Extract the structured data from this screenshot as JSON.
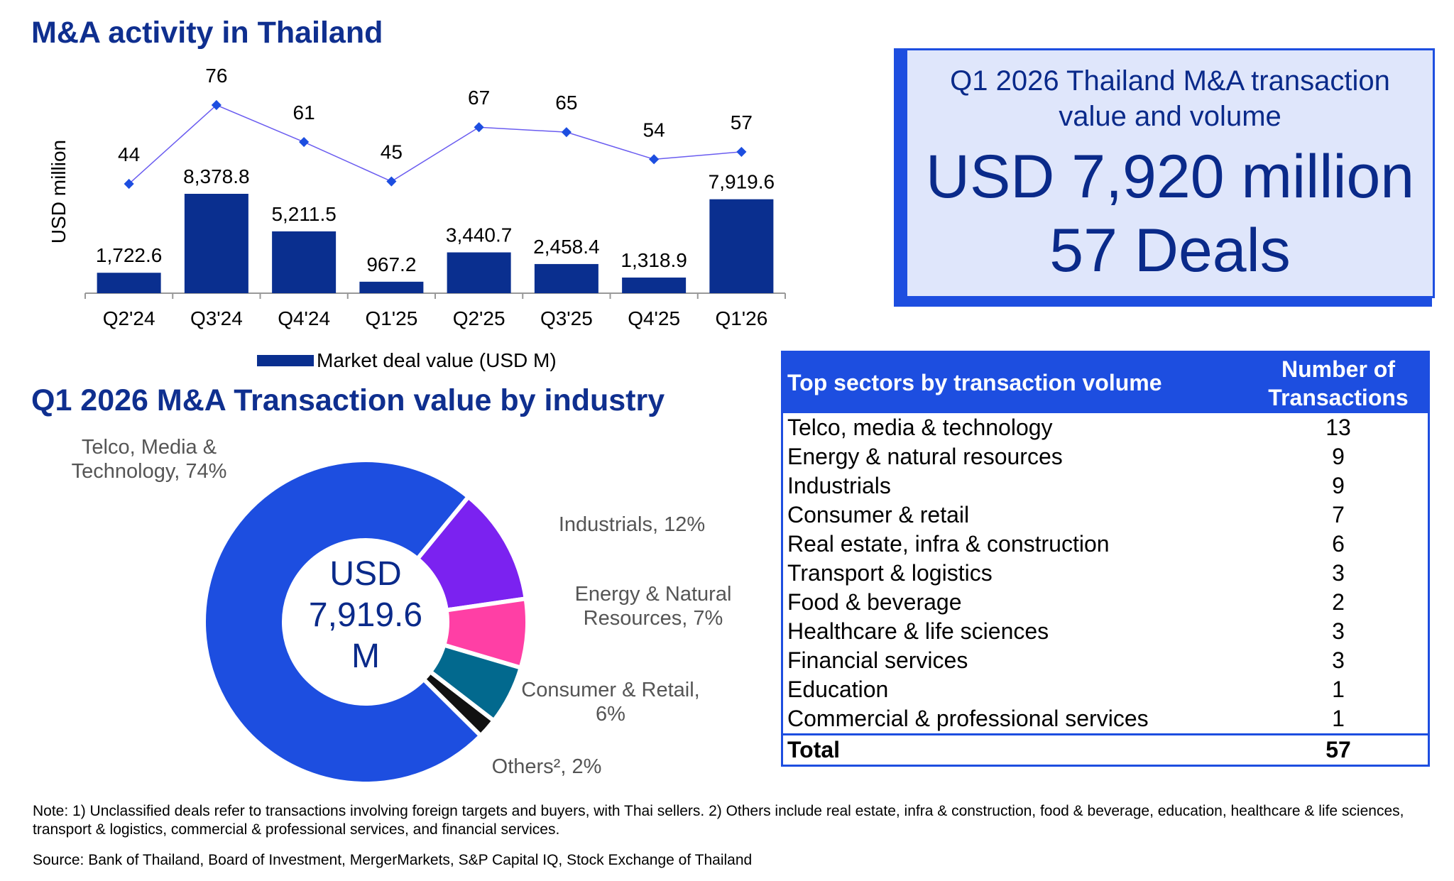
{
  "title": "M&A activity in Thailand",
  "donut_title": "Q1 2026 M&A Transaction value by industry",
  "headline": {
    "subtitle": "Q1 2026 Thailand M&A transaction value and volume",
    "value": "USD 7,920 million",
    "deals": "57 Deals"
  },
  "chart_data": [
    {
      "type": "bar",
      "categories": [
        "Q2'24",
        "Q3'24",
        "Q4'24",
        "Q1'25",
        "Q2'25",
        "Q3'25",
        "Q4'25",
        "Q1'26"
      ],
      "series": [
        {
          "name": "Market deal value (USD M)",
          "type": "bar",
          "values": [
            1722.6,
            8378.8,
            5211.5,
            967.2,
            3440.7,
            2458.4,
            1318.9,
            7919.6
          ],
          "labels": [
            "1,722.6",
            "8,378.8",
            "5,211.5",
            "967.2",
            "3,440.7",
            "2,458.4",
            "1,318.9",
            "7,919.6"
          ],
          "color": "#0a2f8f"
        },
        {
          "type": "line",
          "values": [
            44,
            76,
            61,
            45,
            67,
            65,
            54,
            57
          ],
          "color": "#6a5cf0"
        }
      ],
      "ylabel": "USD million",
      "legend": "bottom"
    },
    {
      "type": "pie",
      "center_text": [
        "USD",
        "7,919.6",
        "M"
      ],
      "slices": [
        {
          "label": [
            "Telco, Media &",
            "Technology, 74%"
          ],
          "value": 74,
          "color": "#1d4ee0"
        },
        {
          "label": [
            "Industrials, 12%"
          ],
          "value": 12,
          "color": "#7b22f0"
        },
        {
          "label": [
            "Energy & Natural",
            "Resources, 7%"
          ],
          "value": 7,
          "color": "#ff3fa5"
        },
        {
          "label": [
            "Consumer & Retail,",
            "6%"
          ],
          "value": 6,
          "color": "#02698e"
        },
        {
          "label": [
            "Others², 2%"
          ],
          "value": 2,
          "color": "#111111"
        }
      ]
    }
  ],
  "table": {
    "header_sector": "Top sectors by transaction volume",
    "header_count": [
      "Number of",
      "Transactions"
    ],
    "rows": [
      {
        "sector": "Telco, media & technology",
        "count": "13"
      },
      {
        "sector": "Energy & natural resources",
        "count": "9"
      },
      {
        "sector": "Industrials",
        "count": "9"
      },
      {
        "sector": "Consumer & retail",
        "count": "7"
      },
      {
        "sector": "Real estate, infra & construction",
        "count": "6"
      },
      {
        "sector": "Transport & logistics",
        "count": "3"
      },
      {
        "sector": "Food & beverage",
        "count": "2"
      },
      {
        "sector": "Healthcare & life sciences",
        "count": "3"
      },
      {
        "sector": "Financial services",
        "count": "3"
      },
      {
        "sector": "Education",
        "count": "1"
      },
      {
        "sector": "Commercial & professional services",
        "count": "1"
      }
    ],
    "total_label": "Total",
    "total_value": "57"
  },
  "note": "Note: 1) Unclassified deals refer to transactions involving foreign targets and buyers, with Thai sellers. 2) Others include real estate, infra & construction, food & beverage, education, healthcare & life sciences, transport & logistics, commercial & professional services, and financial services.",
  "source": "Source: Bank of Thailand, Board of Investment, MergerMarkets, S&P Capital IQ, Stock Exchange of Thailand"
}
